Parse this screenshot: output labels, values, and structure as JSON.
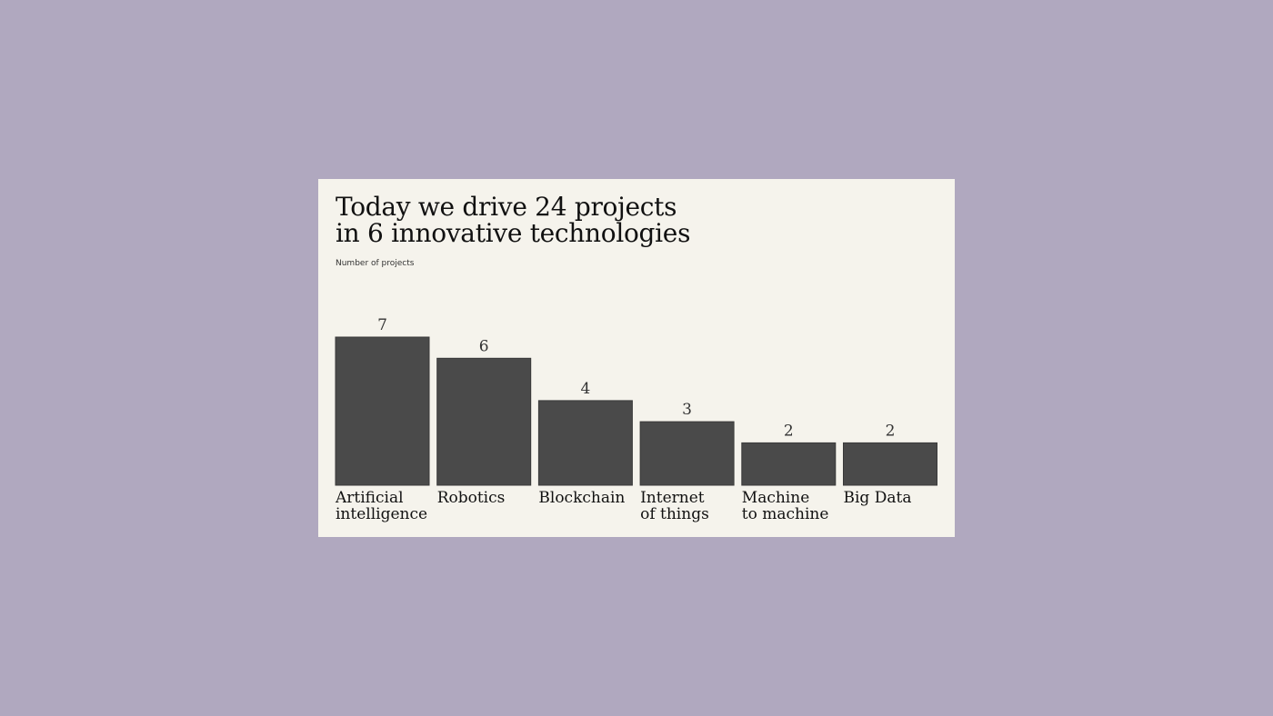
{
  "chart_data": {
    "type": "bar",
    "title_lines": [
      "Today we drive 24 projects",
      "in 6 innovative technologies"
    ],
    "ylabel": "Number of projects",
    "categories": [
      [
        "Artificial",
        "intelligence"
      ],
      [
        "Robotics"
      ],
      [
        "Blockchain"
      ],
      [
        "Internet",
        "of things"
      ],
      [
        "Machine",
        "to machine"
      ],
      [
        "Big Data"
      ]
    ],
    "values": [
      7,
      6,
      4,
      3,
      2,
      2
    ],
    "ylim": [
      0,
      7
    ],
    "grid": false,
    "legend": "none",
    "colors": {
      "background": "#b0a8bf",
      "card": "#f5f3ec",
      "bar": "#4a4a4a",
      "text": "#111111"
    }
  }
}
